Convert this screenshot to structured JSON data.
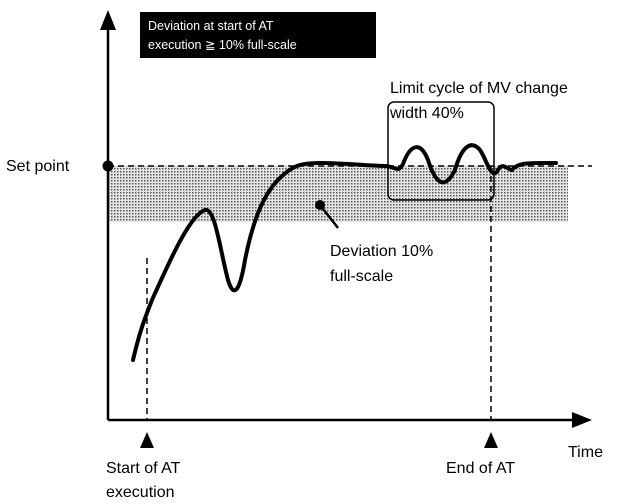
{
  "note_box": {
    "lines": [
      "Deviation at start of AT",
      "execution ≧ 10% full-scale"
    ]
  },
  "limit_cycle_label": {
    "lines": [
      "Limit cycle of MV change",
      "width 40%"
    ]
  },
  "set_point_label": "Set point",
  "deviation_label": {
    "lines": [
      "Deviation 10%",
      "full-scale"
    ]
  },
  "time_label": "Time",
  "start_label": {
    "lines": [
      "Start of AT",
      "execution"
    ]
  },
  "end_label": "End of AT"
}
